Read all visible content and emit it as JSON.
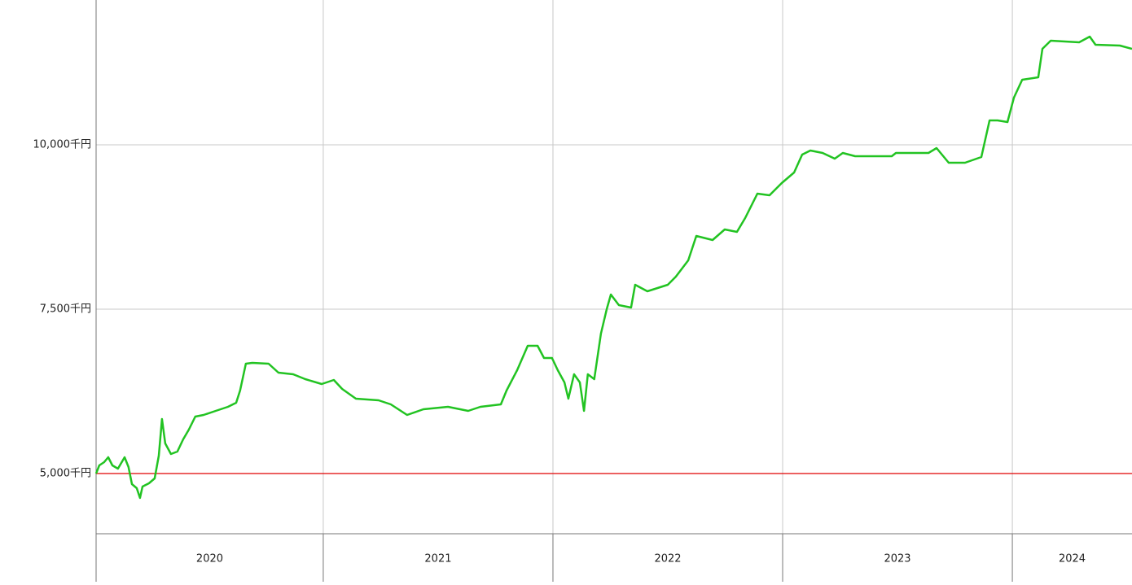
{
  "chart_data": {
    "type": "line",
    "x": [
      2020.011,
      2020.025,
      2020.046,
      2020.064,
      2020.082,
      2020.106,
      2020.135,
      2020.152,
      2020.167,
      2020.188,
      2020.202,
      2020.213,
      2020.241,
      2020.266,
      2020.284,
      2020.298,
      2020.312,
      2020.337,
      2020.365,
      2020.39,
      2020.415,
      2020.443,
      2020.479,
      2020.532,
      2020.585,
      2020.621,
      2020.638,
      2020.663,
      2020.691,
      2020.762,
      2020.805,
      2020.869,
      2020.922,
      2020.993,
      2021.046,
      2021.082,
      2021.142,
      2021.241,
      2021.294,
      2021.365,
      2021.436,
      2021.543,
      2021.631,
      2021.684,
      2021.773,
      2021.798,
      2021.844,
      2021.89,
      2021.933,
      2021.961,
      2021.996,
      2022.021,
      2022.05,
      2022.067,
      2022.092,
      2022.117,
      2022.135,
      2022.152,
      2022.18,
      2022.209,
      2022.234,
      2022.252,
      2022.287,
      2022.34,
      2022.358,
      2022.411,
      2022.5,
      2022.535,
      2022.589,
      2022.624,
      2022.695,
      2022.748,
      2022.801,
      2022.837,
      2022.89,
      2022.943,
      2022.996,
      2023.05,
      2023.085,
      2023.121,
      2023.174,
      2023.227,
      2023.262,
      2023.316,
      2023.475,
      2023.493,
      2023.635,
      2023.67,
      2023.723,
      2023.794,
      2023.865,
      2023.901,
      2023.936,
      2023.979,
      2024.007,
      2024.043,
      2024.113,
      2024.131,
      2024.167,
      2024.291,
      2024.337,
      2024.362,
      2024.468,
      2024.521
    ],
    "series": [
      {
        "color": "#22c322",
        "values": [
          5000,
          5124,
          5173,
          5248,
          5124,
          5074,
          5248,
          5099,
          4839,
          4777,
          4629,
          4802,
          4851,
          4926,
          5272,
          5829,
          5458,
          5297,
          5334,
          5520,
          5668,
          5866,
          5891,
          5953,
          6015,
          6077,
          6262,
          6671,
          6683,
          6671,
          6535,
          6510,
          6436,
          6361,
          6423,
          6287,
          6139,
          6114,
          6052,
          5891,
          5978,
          6015,
          5953,
          6015,
          6052,
          6262,
          6572,
          6943,
          6943,
          6757,
          6757,
          6572,
          6386,
          6139,
          6510,
          6386,
          5953,
          6510,
          6436,
          7129,
          7500,
          7723,
          7562,
          7525,
          7871,
          7772,
          7871,
          7995,
          8243,
          8614,
          8552,
          8713,
          8676,
          8886,
          9257,
          9233,
          9418,
          9579,
          9851,
          9913,
          9876,
          9790,
          9876,
          9827,
          9827,
          9876,
          9876,
          9950,
          9728,
          9728,
          9814,
          10371,
          10371,
          10347,
          10718,
          10990,
          11027,
          11460,
          11584,
          11559,
          11646,
          11522,
          11510,
          11460
        ]
      }
    ],
    "xlim": [
      2020.011,
      2024.521
    ],
    "xticks": [
      2021,
      2022,
      2023,
      2024
    ],
    "categories": [
      "2020",
      "2021",
      "2022",
      "2023",
      "2024"
    ],
    "ylim": [
      4084,
      12203
    ],
    "yticks": [
      {
        "value": 5000,
        "label": "5,000千円"
      },
      {
        "value": 7500,
        "label": "7,500千円"
      },
      {
        "value": 10000,
        "label": "10,000千円"
      }
    ],
    "grid": true,
    "reference_line": 5000,
    "reference_color": "#e00000"
  }
}
